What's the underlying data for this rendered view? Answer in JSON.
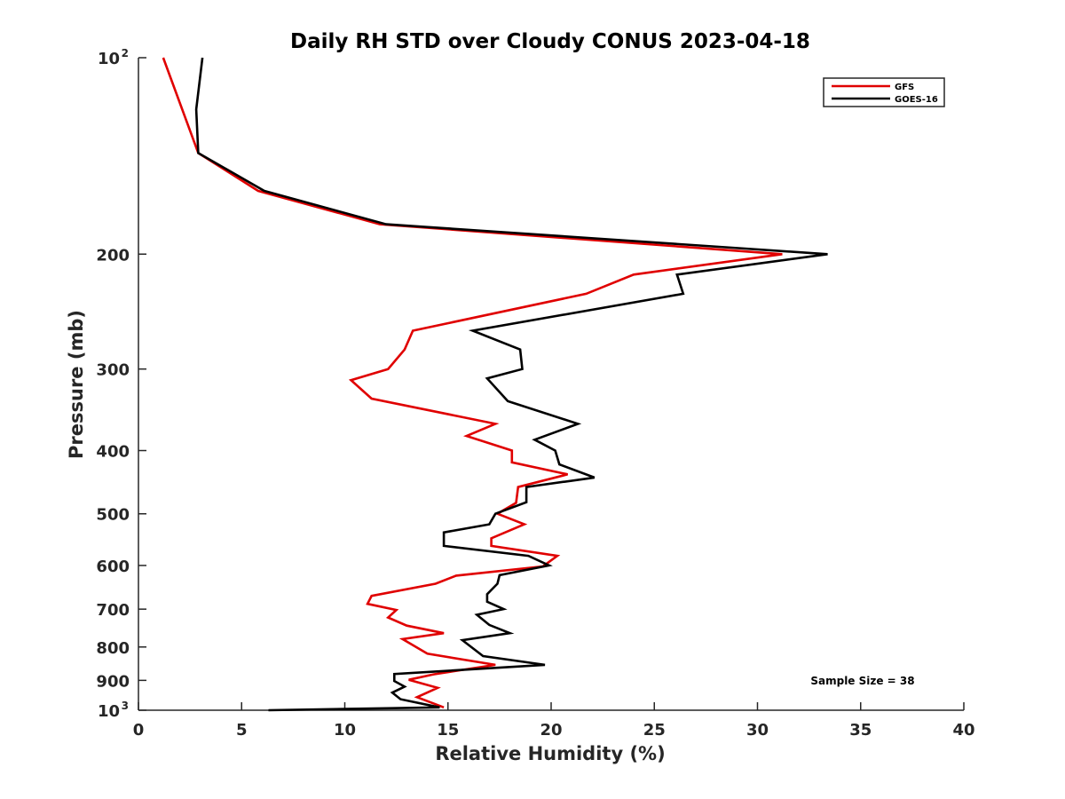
{
  "chart_data": {
    "type": "line",
    "title": "Daily RH STD over Cloudy CONUS 2023-04-18",
    "xlabel": "Relative Humidity (%)",
    "ylabel": "Pressure (mb)",
    "xlim": [
      0,
      40
    ],
    "ylim": [
      100,
      1000
    ],
    "y_scale": "log",
    "y_reversed": true,
    "grid": false,
    "legend_position": "top-right",
    "x_ticks": [
      {
        "value": 0,
        "label": "0"
      },
      {
        "value": 5,
        "label": "5"
      },
      {
        "value": 10,
        "label": "10"
      },
      {
        "value": 15,
        "label": "15"
      },
      {
        "value": 20,
        "label": "20"
      },
      {
        "value": 25,
        "label": "25"
      },
      {
        "value": 30,
        "label": "30"
      },
      {
        "value": 35,
        "label": "35"
      },
      {
        "value": 40,
        "label": "40"
      }
    ],
    "y_ticks": [
      {
        "value": 100,
        "label": "10",
        "sup": "2"
      },
      {
        "value": 200,
        "label": "200",
        "sup": ""
      },
      {
        "value": 300,
        "label": "300",
        "sup": ""
      },
      {
        "value": 400,
        "label": "400",
        "sup": ""
      },
      {
        "value": 500,
        "label": "500",
        "sup": ""
      },
      {
        "value": 600,
        "label": "600",
        "sup": ""
      },
      {
        "value": 700,
        "label": "700",
        "sup": ""
      },
      {
        "value": 800,
        "label": "800",
        "sup": ""
      },
      {
        "value": 900,
        "label": "900",
        "sup": ""
      },
      {
        "value": 1000,
        "label": "10",
        "sup": "3"
      }
    ],
    "annotation": "Sample Size = 38",
    "series": [
      {
        "name": "GFS",
        "color": "#e00000",
        "points": [
          [
            1.2,
            100
          ],
          [
            2.9,
            140
          ],
          [
            5.8,
            160
          ],
          [
            11.7,
            180
          ],
          [
            31.2,
            200
          ],
          [
            24.0,
            215
          ],
          [
            21.7,
            230
          ],
          [
            13.3,
            262
          ],
          [
            12.9,
            280
          ],
          [
            12.1,
            300
          ],
          [
            10.3,
            312
          ],
          [
            11.3,
            333
          ],
          [
            17.3,
            364
          ],
          [
            15.9,
            380
          ],
          [
            18.1,
            400
          ],
          [
            18.1,
            417
          ],
          [
            20.8,
            435
          ],
          [
            18.4,
            455
          ],
          [
            18.3,
            481
          ],
          [
            17.4,
            500
          ],
          [
            18.7,
            519
          ],
          [
            17.1,
            545
          ],
          [
            17.1,
            560
          ],
          [
            20.3,
            580
          ],
          [
            19.6,
            602
          ],
          [
            15.4,
            622
          ],
          [
            14.4,
            640
          ],
          [
            11.3,
            668
          ],
          [
            11.1,
            687
          ],
          [
            12.5,
            702
          ],
          [
            12.1,
            721
          ],
          [
            13.0,
            742
          ],
          [
            14.8,
            762
          ],
          [
            12.8,
            778
          ],
          [
            14.0,
            819
          ],
          [
            17.3,
            852
          ],
          [
            14.3,
            881
          ],
          [
            13.1,
            898
          ],
          [
            14.5,
            924
          ],
          [
            13.5,
            955
          ],
          [
            14.8,
            990
          ]
        ]
      },
      {
        "name": "GOES-16",
        "color": "#000000",
        "points": [
          [
            3.1,
            100
          ],
          [
            2.8,
            120
          ],
          [
            2.9,
            140
          ],
          [
            6.1,
            160
          ],
          [
            12.0,
            180
          ],
          [
            33.4,
            200
          ],
          [
            26.1,
            215
          ],
          [
            26.4,
            230
          ],
          [
            16.2,
            262
          ],
          [
            18.5,
            280
          ],
          [
            18.6,
            300
          ],
          [
            16.9,
            310
          ],
          [
            17.9,
            336
          ],
          [
            21.3,
            364
          ],
          [
            19.2,
            385
          ],
          [
            20.2,
            400
          ],
          [
            20.4,
            420
          ],
          [
            22.1,
            440
          ],
          [
            18.8,
            455
          ],
          [
            18.8,
            480
          ],
          [
            17.3,
            500
          ],
          [
            17.0,
            519
          ],
          [
            14.8,
            534
          ],
          [
            14.8,
            560
          ],
          [
            18.9,
            580
          ],
          [
            19.9,
            600
          ],
          [
            17.5,
            621
          ],
          [
            17.4,
            640
          ],
          [
            16.9,
            664
          ],
          [
            16.9,
            682
          ],
          [
            17.7,
            700
          ],
          [
            16.4,
            714
          ],
          [
            17.0,
            740
          ],
          [
            18.0,
            762
          ],
          [
            15.7,
            781
          ],
          [
            16.7,
            826
          ],
          [
            19.7,
            852
          ],
          [
            12.4,
            880
          ],
          [
            12.4,
            902
          ],
          [
            12.9,
            920
          ],
          [
            12.3,
            940
          ],
          [
            12.7,
            962
          ],
          [
            14.6,
            990
          ],
          [
            6.3,
            1000
          ]
        ]
      }
    ]
  }
}
